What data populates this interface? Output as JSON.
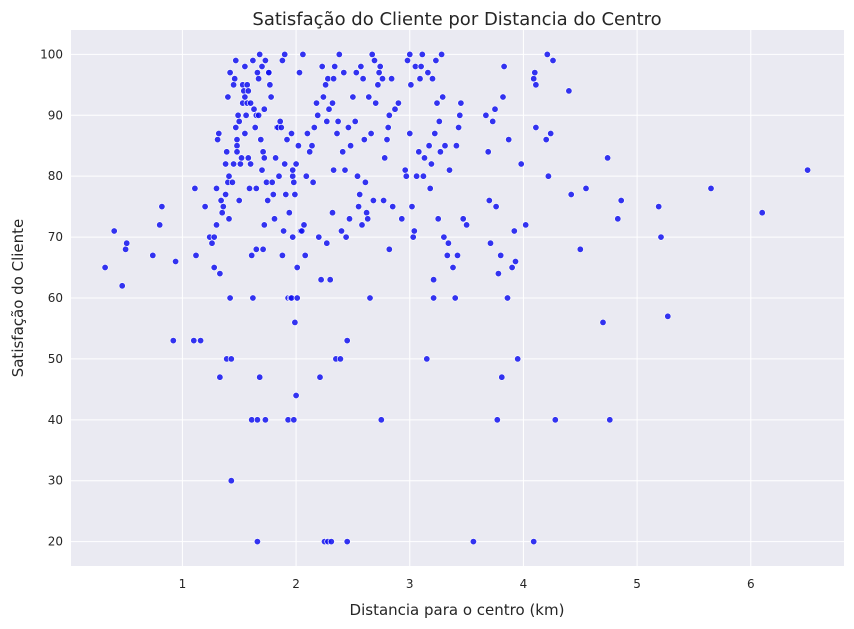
{
  "chart_data": {
    "type": "scatter",
    "title": "Satisfação do Cliente por Distancia do Centro",
    "xlabel": "Distancia para o centro (km)",
    "ylabel": "Satisfação do Cliente",
    "xlim": [
      0.02,
      6.82
    ],
    "ylim": [
      16,
      104
    ],
    "xticks": [
      "1",
      "2",
      "3",
      "4",
      "5",
      "6"
    ],
    "yticks": [
      "20",
      "30",
      "40",
      "50",
      "60",
      "70",
      "80",
      "90",
      "100"
    ],
    "grid": true,
    "point_color": "#1212f0",
    "background_color": "#eaeaf2",
    "points": [
      [
        0.32,
        65
      ],
      [
        0.4,
        71
      ],
      [
        0.47,
        62
      ],
      [
        0.5,
        68
      ],
      [
        0.51,
        69
      ],
      [
        0.74,
        67
      ],
      [
        0.8,
        72
      ],
      [
        0.82,
        75
      ],
      [
        0.92,
        53
      ],
      [
        0.94,
        66
      ],
      [
        1.1,
        53
      ],
      [
        1.11,
        78
      ],
      [
        1.12,
        67
      ],
      [
        1.16,
        53
      ],
      [
        1.2,
        75
      ],
      [
        1.24,
        70
      ],
      [
        1.26,
        69
      ],
      [
        1.28,
        65
      ],
      [
        1.28,
        70
      ],
      [
        1.3,
        72
      ],
      [
        1.3,
        78
      ],
      [
        1.31,
        86
      ],
      [
        1.32,
        87
      ],
      [
        1.33,
        64
      ],
      [
        1.33,
        47
      ],
      [
        1.34,
        76
      ],
      [
        1.35,
        74
      ],
      [
        1.36,
        75
      ],
      [
        1.38,
        82
      ],
      [
        1.38,
        77
      ],
      [
        1.39,
        50
      ],
      [
        1.39,
        84
      ],
      [
        1.4,
        93
      ],
      [
        1.4,
        79
      ],
      [
        1.41,
        80
      ],
      [
        1.41,
        73
      ],
      [
        1.42,
        60
      ],
      [
        1.42,
        97
      ],
      [
        1.43,
        30
      ],
      [
        1.43,
        50
      ],
      [
        1.44,
        79
      ],
      [
        1.45,
        95
      ],
      [
        1.45,
        82
      ],
      [
        1.46,
        96
      ],
      [
        1.47,
        88
      ],
      [
        1.47,
        99
      ],
      [
        1.48,
        86
      ],
      [
        1.48,
        85
      ],
      [
        1.48,
        84
      ],
      [
        1.49,
        90
      ],
      [
        1.5,
        89
      ],
      [
        1.5,
        76
      ],
      [
        1.51,
        82
      ],
      [
        1.52,
        83
      ],
      [
        1.53,
        92
      ],
      [
        1.53,
        95
      ],
      [
        1.54,
        94
      ],
      [
        1.55,
        93
      ],
      [
        1.55,
        98
      ],
      [
        1.55,
        87
      ],
      [
        1.56,
        90
      ],
      [
        1.57,
        95
      ],
      [
        1.57,
        92
      ],
      [
        1.58,
        83
      ],
      [
        1.58,
        94
      ],
      [
        1.59,
        78
      ],
      [
        1.6,
        82
      ],
      [
        1.6,
        92
      ],
      [
        1.61,
        67
      ],
      [
        1.61,
        40
      ],
      [
        1.62,
        60
      ],
      [
        1.62,
        99
      ],
      [
        1.63,
        91
      ],
      [
        1.64,
        88
      ],
      [
        1.65,
        90
      ],
      [
        1.65,
        68
      ],
      [
        1.65,
        78
      ],
      [
        1.66,
        20
      ],
      [
        1.66,
        97
      ],
      [
        1.66,
        40
      ],
      [
        1.67,
        90
      ],
      [
        1.67,
        96
      ],
      [
        1.68,
        47
      ],
      [
        1.68,
        100
      ],
      [
        1.69,
        86
      ],
      [
        1.7,
        98
      ],
      [
        1.7,
        81
      ],
      [
        1.71,
        68
      ],
      [
        1.71,
        84
      ],
      [
        1.72,
        72
      ],
      [
        1.72,
        91
      ],
      [
        1.72,
        83
      ],
      [
        1.73,
        40
      ],
      [
        1.73,
        99
      ],
      [
        1.74,
        79
      ],
      [
        1.75,
        76
      ],
      [
        1.76,
        97
      ],
      [
        1.76,
        97
      ],
      [
        1.77,
        95
      ],
      [
        1.78,
        93
      ],
      [
        1.79,
        79
      ],
      [
        1.8,
        77
      ],
      [
        1.81,
        73
      ],
      [
        1.82,
        83
      ],
      [
        1.83,
        88
      ],
      [
        1.84,
        88
      ],
      [
        1.85,
        80
      ],
      [
        1.86,
        89
      ],
      [
        1.87,
        88
      ],
      [
        1.88,
        67
      ],
      [
        1.88,
        99
      ],
      [
        1.89,
        71
      ],
      [
        1.9,
        100
      ],
      [
        1.9,
        82
      ],
      [
        1.91,
        77
      ],
      [
        1.92,
        86
      ],
      [
        1.93,
        60
      ],
      [
        1.93,
        40
      ],
      [
        1.94,
        74
      ],
      [
        1.95,
        60
      ],
      [
        1.96,
        87
      ],
      [
        1.96,
        60
      ],
      [
        1.97,
        80
      ],
      [
        1.97,
        70
      ],
      [
        1.97,
        81
      ],
      [
        1.98,
        40
      ],
      [
        1.98,
        79
      ],
      [
        1.99,
        56
      ],
      [
        1.99,
        77
      ],
      [
        2.0,
        82
      ],
      [
        2.0,
        44
      ],
      [
        2.01,
        65
      ],
      [
        2.01,
        60
      ],
      [
        2.02,
        85
      ],
      [
        2.03,
        97
      ],
      [
        2.04,
        71
      ],
      [
        2.05,
        71
      ],
      [
        2.06,
        100
      ],
      [
        2.07,
        72
      ],
      [
        2.08,
        67
      ],
      [
        2.09,
        80
      ],
      [
        2.1,
        87
      ],
      [
        2.12,
        84
      ],
      [
        2.14,
        85
      ],
      [
        2.15,
        79
      ],
      [
        2.16,
        88
      ],
      [
        2.18,
        92
      ],
      [
        2.19,
        90
      ],
      [
        2.2,
        70
      ],
      [
        2.21,
        47
      ],
      [
        2.22,
        63
      ],
      [
        2.23,
        98
      ],
      [
        2.24,
        93
      ],
      [
        2.25,
        20
      ],
      [
        2.26,
        95
      ],
      [
        2.27,
        69
      ],
      [
        2.27,
        89
      ],
      [
        2.28,
        96
      ],
      [
        2.28,
        20
      ],
      [
        2.29,
        91
      ],
      [
        2.3,
        63
      ],
      [
        2.31,
        20
      ],
      [
        2.32,
        74
      ],
      [
        2.32,
        92
      ],
      [
        2.33,
        81
      ],
      [
        2.33,
        96
      ],
      [
        2.34,
        98
      ],
      [
        2.35,
        50
      ],
      [
        2.36,
        87
      ],
      [
        2.37,
        89
      ],
      [
        2.38,
        100
      ],
      [
        2.39,
        50
      ],
      [
        2.4,
        71
      ],
      [
        2.41,
        84
      ],
      [
        2.42,
        97
      ],
      [
        2.43,
        81
      ],
      [
        2.44,
        70
      ],
      [
        2.45,
        53
      ],
      [
        2.45,
        20
      ],
      [
        2.46,
        88
      ],
      [
        2.47,
        73
      ],
      [
        2.48,
        85
      ],
      [
        2.5,
        93
      ],
      [
        2.52,
        89
      ],
      [
        2.53,
        97
      ],
      [
        2.54,
        80
      ],
      [
        2.55,
        75
      ],
      [
        2.56,
        77
      ],
      [
        2.57,
        98
      ],
      [
        2.58,
        72
      ],
      [
        2.59,
        96
      ],
      [
        2.6,
        86
      ],
      [
        2.61,
        79
      ],
      [
        2.62,
        74
      ],
      [
        2.63,
        73
      ],
      [
        2.64,
        93
      ],
      [
        2.65,
        60
      ],
      [
        2.66,
        87
      ],
      [
        2.67,
        100
      ],
      [
        2.68,
        76
      ],
      [
        2.69,
        99
      ],
      [
        2.7,
        92
      ],
      [
        2.72,
        95
      ],
      [
        2.73,
        97
      ],
      [
        2.74,
        98
      ],
      [
        2.75,
        40
      ],
      [
        2.76,
        96
      ],
      [
        2.77,
        76
      ],
      [
        2.78,
        83
      ],
      [
        2.8,
        86
      ],
      [
        2.81,
        88
      ],
      [
        2.82,
        68
      ],
      [
        2.82,
        90
      ],
      [
        2.84,
        96
      ],
      [
        2.85,
        75
      ],
      [
        2.87,
        91
      ],
      [
        2.9,
        92
      ],
      [
        2.93,
        73
      ],
      [
        2.96,
        81
      ],
      [
        2.97,
        80
      ],
      [
        2.98,
        99
      ],
      [
        3.0,
        100
      ],
      [
        3.0,
        87
      ],
      [
        3.01,
        95
      ],
      [
        3.02,
        75
      ],
      [
        3.03,
        70
      ],
      [
        3.04,
        71
      ],
      [
        3.05,
        98
      ],
      [
        3.06,
        80
      ],
      [
        3.08,
        84
      ],
      [
        3.09,
        96
      ],
      [
        3.1,
        98
      ],
      [
        3.11,
        100
      ],
      [
        3.12,
        80
      ],
      [
        3.13,
        83
      ],
      [
        3.15,
        50
      ],
      [
        3.16,
        97
      ],
      [
        3.17,
        85
      ],
      [
        3.18,
        78
      ],
      [
        3.19,
        82
      ],
      [
        3.2,
        96
      ],
      [
        3.21,
        60
      ],
      [
        3.21,
        63
      ],
      [
        3.22,
        87
      ],
      [
        3.23,
        99
      ],
      [
        3.24,
        92
      ],
      [
        3.25,
        73
      ],
      [
        3.26,
        89
      ],
      [
        3.27,
        84
      ],
      [
        3.28,
        100
      ],
      [
        3.29,
        93
      ],
      [
        3.3,
        70
      ],
      [
        3.31,
        85
      ],
      [
        3.33,
        67
      ],
      [
        3.34,
        69
      ],
      [
        3.35,
        81
      ],
      [
        3.38,
        65
      ],
      [
        3.4,
        60
      ],
      [
        3.41,
        85
      ],
      [
        3.42,
        67
      ],
      [
        3.43,
        88
      ],
      [
        3.44,
        90
      ],
      [
        3.45,
        92
      ],
      [
        3.47,
        73
      ],
      [
        3.5,
        72
      ],
      [
        3.56,
        20
      ],
      [
        3.67,
        90
      ],
      [
        3.69,
        84
      ],
      [
        3.7,
        76
      ],
      [
        3.71,
        69
      ],
      [
        3.73,
        89
      ],
      [
        3.75,
        91
      ],
      [
        3.76,
        75
      ],
      [
        3.77,
        40
      ],
      [
        3.78,
        64
      ],
      [
        3.8,
        67
      ],
      [
        3.81,
        47
      ],
      [
        3.82,
        93
      ],
      [
        3.83,
        98
      ],
      [
        3.86,
        60
      ],
      [
        3.87,
        86
      ],
      [
        3.9,
        65
      ],
      [
        3.92,
        71
      ],
      [
        3.93,
        66
      ],
      [
        3.95,
        50
      ],
      [
        3.98,
        82
      ],
      [
        4.02,
        72
      ],
      [
        4.09,
        96
      ],
      [
        4.09,
        20
      ],
      [
        4.1,
        97
      ],
      [
        4.11,
        95
      ],
      [
        4.11,
        88
      ],
      [
        4.2,
        86
      ],
      [
        4.21,
        100
      ],
      [
        4.22,
        80
      ],
      [
        4.24,
        87
      ],
      [
        4.26,
        99
      ],
      [
        4.28,
        40
      ],
      [
        4.4,
        94
      ],
      [
        4.42,
        77
      ],
      [
        4.5,
        68
      ],
      [
        4.55,
        78
      ],
      [
        4.7,
        56
      ],
      [
        4.74,
        83
      ],
      [
        4.76,
        40
      ],
      [
        4.83,
        73
      ],
      [
        4.86,
        76
      ],
      [
        5.19,
        75
      ],
      [
        5.21,
        70
      ],
      [
        5.27,
        57
      ],
      [
        5.65,
        78
      ],
      [
        6.1,
        74
      ],
      [
        6.5,
        81
      ]
    ]
  }
}
